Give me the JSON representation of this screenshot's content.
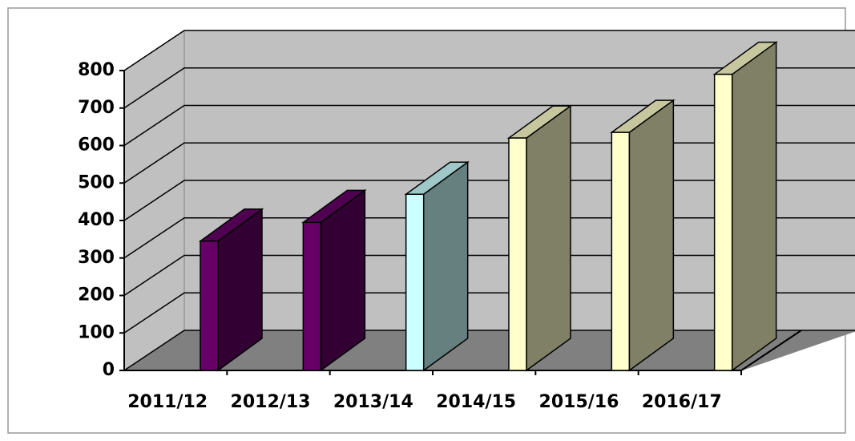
{
  "chart_data": {
    "type": "bar3d",
    "categories": [
      "2011/12",
      "2012/13",
      "2013/14",
      "2014/15",
      "2015/16",
      "2016/17"
    ],
    "values": [
      345,
      395,
      470,
      620,
      635,
      790
    ],
    "colors": [
      "#660066",
      "#660066",
      "#ccffff",
      "#ffffcc",
      "#ffffcc",
      "#ffffcc"
    ],
    "ylim": [
      0,
      800
    ],
    "yticks": [
      0,
      100,
      200,
      300,
      400,
      500,
      600,
      700,
      800
    ],
    "grid": true
  }
}
